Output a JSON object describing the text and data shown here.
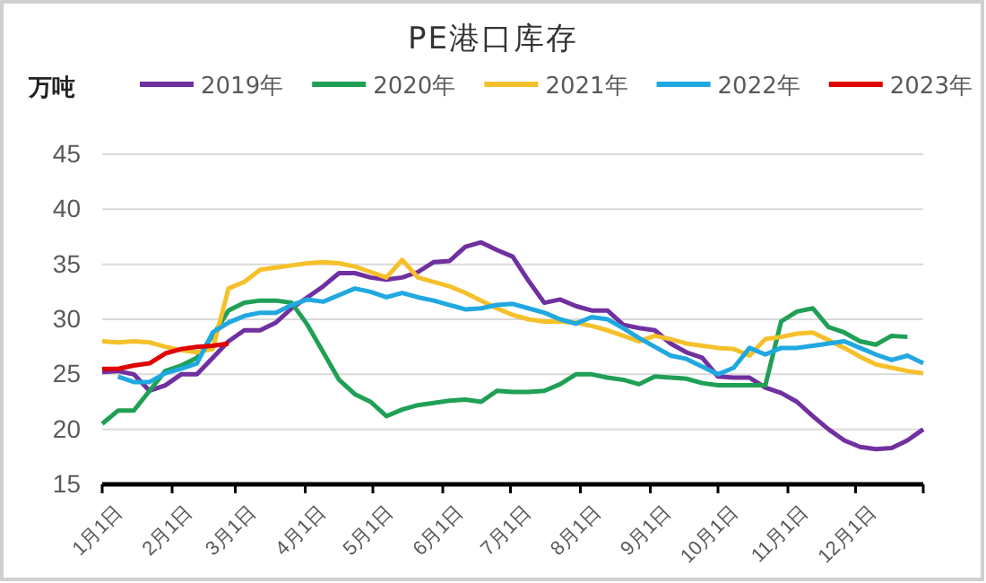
{
  "chart_data": {
    "type": "line",
    "title": "PE港口库存",
    "ylabel": "万吨",
    "legend": "top",
    "grid": "y",
    "line_style": "solid",
    "marker": "none",
    "x": [
      "--01-01",
      "--01-08",
      "--01-15",
      "--01-22",
      "--01-29",
      "--02-05",
      "--02-12",
      "--02-19",
      "--02-26",
      "--03-05",
      "--03-12",
      "--03-19",
      "--03-26",
      "--04-02",
      "--04-09",
      "--04-16",
      "--04-23",
      "--04-30",
      "--05-07",
      "--05-14",
      "--05-21",
      "--05-28",
      "--06-04",
      "--06-11",
      "--06-18",
      "--06-25",
      "--07-02",
      "--07-09",
      "--07-16",
      "--07-23",
      "--07-30",
      "--08-06",
      "--08-13",
      "--08-20",
      "--08-27",
      "--09-03",
      "--09-10",
      "--09-17",
      "--09-24",
      "--10-01",
      "--10-08",
      "--10-15",
      "--10-22",
      "--10-29",
      "--11-05",
      "--11-12",
      "--11-19",
      "--11-26",
      "--12-03",
      "--12-10",
      "--12-17",
      "--12-24",
      "--12-31"
    ],
    "xlim": [
      "--01-01",
      "--12-31"
    ],
    "xticks": [
      {
        "value": "--01-01",
        "label": "1月1日"
      },
      {
        "value": "--02-01",
        "label": "2月1日"
      },
      {
        "value": "--03-01",
        "label": "3月1日"
      },
      {
        "value": "--04-01",
        "label": "4月1日"
      },
      {
        "value": "--05-01",
        "label": "5月1日"
      },
      {
        "value": "--06-01",
        "label": "6月1日"
      },
      {
        "value": "--07-01",
        "label": "7月1日"
      },
      {
        "value": "--08-01",
        "label": "8月1日"
      },
      {
        "value": "--09-01",
        "label": "9月1日"
      },
      {
        "value": "--10-01",
        "label": "10月1日"
      },
      {
        "value": "--11-01",
        "label": "11月1日"
      },
      {
        "value": "--12-01",
        "label": "12月1日"
      },
      {
        "value": "--12-31",
        "label": null
      }
    ],
    "ylim": [
      15,
      45
    ],
    "yticks": [
      15,
      20,
      25,
      30,
      35,
      40,
      45
    ],
    "series": [
      {
        "name": "2019年",
        "color": "#7030a0",
        "values": [
          25.2,
          25.3,
          25,
          23.5,
          24,
          25,
          25,
          26.5,
          28,
          29,
          29,
          29.7,
          31,
          32,
          33,
          34.2,
          34.2,
          33.8,
          33.6,
          33.8,
          34.3,
          35.2,
          35.3,
          36.6,
          37,
          36.3,
          35.7,
          33.5,
          31.5,
          31.8,
          31.2,
          30.8,
          30.8,
          29.5,
          29.2,
          29,
          27.8,
          27,
          26.5,
          24.8,
          24.7,
          24.7,
          23.8,
          23.3,
          22.5,
          21.2,
          20,
          19,
          18.4,
          18.2,
          18.3,
          19,
          20
        ]
      },
      {
        "name": "2020年",
        "color": "#1fa055",
        "values": [
          20.5,
          21.7,
          21.7,
          23.5,
          25.3,
          25.8,
          26.5,
          28.5,
          30.8,
          31.5,
          31.7,
          31.7,
          31.5,
          29.5,
          27,
          24.5,
          23.2,
          22.5,
          21.2,
          21.8,
          22.2,
          22.4,
          22.6,
          22.7,
          22.5,
          23.5,
          23.4,
          23.4,
          23.5,
          24.1,
          25,
          25,
          24.7,
          24.5,
          24.1,
          24.8,
          24.7,
          24.6,
          24.2,
          24,
          24,
          24,
          24,
          29.8,
          30.7,
          31,
          29.3,
          28.8,
          28,
          27.7,
          28.5,
          28.4,
          null
        ]
      },
      {
        "name": "2021年",
        "color": "#f5c02a",
        "values": [
          28,
          27.9,
          28,
          27.9,
          27.5,
          27.2,
          27,
          27.3,
          32.8,
          33.4,
          34.5,
          34.7,
          34.9,
          35.1,
          35.2,
          35.1,
          34.8,
          34.3,
          33.8,
          35.4,
          33.8,
          33.4,
          33,
          32.4,
          31.7,
          31,
          30.4,
          30,
          29.8,
          29.8,
          29.7,
          29.4,
          29,
          28.5,
          28,
          28.5,
          28.2,
          27.8,
          27.6,
          27.4,
          27.3,
          26.7,
          28.2,
          28.4,
          28.7,
          28.8,
          28.1,
          27.4,
          26.6,
          25.9,
          25.6,
          25.3,
          25.1
        ]
      },
      {
        "name": "2022年",
        "color": "#20a8e0",
        "values": [
          null,
          24.8,
          24.3,
          24.3,
          25.1,
          25.5,
          26,
          28.8,
          29.7,
          30.3,
          30.6,
          30.6,
          31.3,
          31.8,
          31.6,
          32.2,
          32.8,
          32.5,
          32,
          32.4,
          32,
          31.7,
          31.3,
          30.9,
          31,
          31.3,
          31.4,
          31,
          30.6,
          30,
          29.6,
          30.2,
          30,
          29.2,
          28.3,
          27.5,
          26.7,
          26.4,
          25.7,
          25,
          25.6,
          27.4,
          26.8,
          27.4,
          27.4,
          27.6,
          27.8,
          28,
          27.4,
          26.8,
          26.3,
          26.7,
          26
        ]
      },
      {
        "name": "2023年",
        "color": "#e00000",
        "values": [
          25.5,
          25.5,
          25.8,
          26,
          26.9,
          27.3,
          27.5,
          27.6,
          27.8,
          null,
          null,
          null,
          null,
          null,
          null,
          null,
          null,
          null,
          null,
          null,
          null,
          null,
          null,
          null,
          null,
          null,
          null,
          null,
          null,
          null,
          null,
          null,
          null,
          null,
          null,
          null,
          null,
          null,
          null,
          null,
          null,
          null,
          null,
          null,
          null,
          null,
          null,
          null,
          null,
          null,
          null,
          null,
          null
        ]
      }
    ]
  }
}
